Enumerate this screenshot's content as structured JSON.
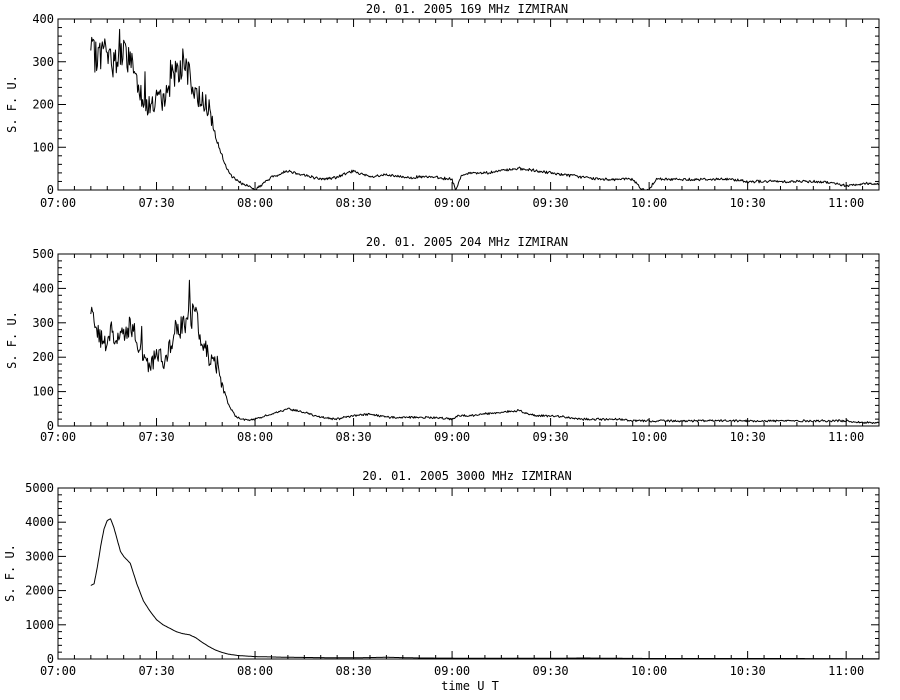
{
  "xlabel": "time  U T",
  "chart_data": [
    {
      "type": "line",
      "title": "20.  01.  2005    169  MHz     IZMIRAN",
      "ylabel": "S. F. U.",
      "xlim": [
        "07:00",
        "11:10"
      ],
      "ylim": [
        0,
        400
      ],
      "x_ticks": [
        "07:00",
        "07:30",
        "08:00",
        "08:30",
        "09:00",
        "09:30",
        "10:00",
        "10:30",
        "11:00"
      ],
      "y_ticks": [
        0,
        100,
        200,
        300,
        400
      ],
      "x": [
        "07:10",
        "07:12",
        "07:14",
        "07:16",
        "07:18",
        "07:20",
        "07:22",
        "07:24",
        "07:26",
        "07:28",
        "07:30",
        "07:32",
        "07:34",
        "07:36",
        "07:38",
        "07:40",
        "07:42",
        "07:44",
        "07:46",
        "07:48",
        "07:50",
        "07:52",
        "07:54",
        "07:56",
        "07:58",
        "08:00",
        "08:05",
        "08:10",
        "08:15",
        "08:20",
        "08:25",
        "08:30",
        "08:35",
        "08:40",
        "08:45",
        "08:50",
        "08:55",
        "09:00",
        "09:01",
        "09:03",
        "09:05",
        "09:10",
        "09:15",
        "09:20",
        "09:25",
        "09:30",
        "09:35",
        "09:40",
        "09:45",
        "09:50",
        "09:55",
        "09:58",
        "10:00",
        "10:02",
        "10:05",
        "10:10",
        "10:15",
        "10:20",
        "10:25",
        "10:30",
        "10:35",
        "10:40",
        "10:45",
        "10:50",
        "10:55",
        "11:00",
        "11:05",
        "11:10"
      ],
      "values": [
        320,
        310,
        330,
        300,
        305,
        315,
        310,
        260,
        210,
        195,
        215,
        205,
        250,
        285,
        280,
        265,
        215,
        220,
        190,
        125,
        80,
        40,
        25,
        15,
        10,
        0,
        30,
        45,
        35,
        25,
        30,
        45,
        30,
        35,
        30,
        30,
        30,
        25,
        0,
        35,
        40,
        40,
        45,
        50,
        45,
        40,
        35,
        30,
        25,
        25,
        25,
        0,
        0,
        25,
        25,
        25,
        25,
        25,
        25,
        20,
        20,
        20,
        20,
        20,
        18,
        10,
        15,
        15
      ]
    },
    {
      "type": "line",
      "title": "20.  01.  2005    204  MHz     IZMIRAN",
      "ylabel": "S. F. U.",
      "xlim": [
        "07:00",
        "11:10"
      ],
      "ylim": [
        0,
        500
      ],
      "x_ticks": [
        "07:00",
        "07:30",
        "08:00",
        "08:30",
        "09:00",
        "09:30",
        "10:00",
        "10:30",
        "11:00"
      ],
      "y_ticks": [
        0,
        100,
        200,
        300,
        400,
        500
      ],
      "x": [
        "07:10",
        "07:12",
        "07:14",
        "07:16",
        "07:18",
        "07:20",
        "07:22",
        "07:24",
        "07:26",
        "07:28",
        "07:30",
        "07:32",
        "07:34",
        "07:36",
        "07:38",
        "07:40",
        "07:42",
        "07:44",
        "07:46",
        "07:48",
        "07:50",
        "07:52",
        "07:54",
        "07:56",
        "07:58",
        "08:00",
        "08:05",
        "08:10",
        "08:15",
        "08:20",
        "08:25",
        "08:30",
        "08:35",
        "08:40",
        "08:45",
        "08:50",
        "08:55",
        "09:00",
        "09:02",
        "09:05",
        "09:10",
        "09:15",
        "09:20",
        "09:25",
        "09:30",
        "09:35",
        "09:40",
        "09:45",
        "09:50",
        "09:55",
        "10:00",
        "10:05",
        "10:10",
        "10:20",
        "10:30",
        "10:40",
        "10:50",
        "11:00",
        "11:05",
        "11:10"
      ],
      "values": [
        310,
        270,
        230,
        270,
        250,
        280,
        300,
        250,
        200,
        160,
        210,
        190,
        240,
        280,
        300,
        320,
        310,
        250,
        200,
        180,
        120,
        60,
        30,
        20,
        15,
        20,
        35,
        50,
        40,
        25,
        20,
        30,
        35,
        25,
        25,
        25,
        25,
        20,
        30,
        30,
        35,
        40,
        45,
        30,
        30,
        25,
        20,
        20,
        20,
        15,
        15,
        15,
        15,
        15,
        15,
        15,
        15,
        15,
        10,
        10
      ]
    },
    {
      "type": "line",
      "title": "20.  01.  2005     3000  MHz     IZMIRAN",
      "ylabel": "S. F. U.",
      "xlim": [
        "07:00",
        "11:10"
      ],
      "ylim": [
        0,
        5000
      ],
      "x_ticks": [
        "07:00",
        "07:30",
        "08:00",
        "08:30",
        "09:00",
        "09:30",
        "10:00",
        "10:30",
        "11:00"
      ],
      "y_ticks": [
        0,
        1000,
        2000,
        3000,
        4000,
        5000
      ],
      "x": [
        "07:10",
        "07:11",
        "07:12",
        "07:13",
        "07:14",
        "07:15",
        "07:16",
        "07:17",
        "07:18",
        "07:19",
        "07:20",
        "07:22",
        "07:24",
        "07:26",
        "07:28",
        "07:30",
        "07:32",
        "07:34",
        "07:36",
        "07:38",
        "07:40",
        "07:42",
        "07:44",
        "07:46",
        "07:48",
        "07:50",
        "07:52",
        "07:55",
        "08:00",
        "08:10",
        "08:20",
        "08:30",
        "08:40",
        "08:50",
        "09:00",
        "09:10",
        "09:20",
        "09:30",
        "09:40",
        "09:50",
        "10:00",
        "10:20",
        "10:40",
        "11:00",
        "11:10"
      ],
      "values": [
        2150,
        2200,
        2700,
        3300,
        3800,
        4050,
        4100,
        3850,
        3500,
        3150,
        3000,
        2800,
        2200,
        1700,
        1400,
        1150,
        1000,
        900,
        800,
        740,
        710,
        620,
        480,
        360,
        260,
        190,
        140,
        100,
        70,
        50,
        40,
        35,
        50,
        30,
        25,
        20,
        25,
        20,
        30,
        20,
        15,
        15,
        15,
        10,
        10
      ]
    }
  ]
}
